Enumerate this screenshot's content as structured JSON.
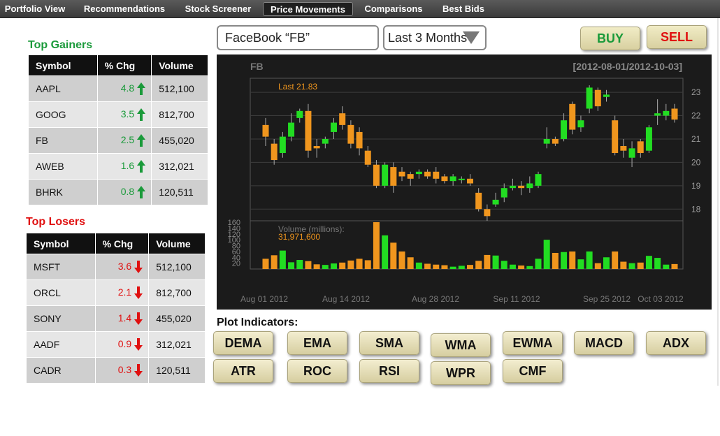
{
  "nav": {
    "tabs": [
      {
        "label": "Portfolio View"
      },
      {
        "label": "Recommendations"
      },
      {
        "label": "Stock Screener"
      },
      {
        "label": "Price Movements",
        "active": true
      },
      {
        "label": "Comparisons"
      },
      {
        "label": "Best Bids"
      }
    ]
  },
  "gainers": {
    "title": "Top Gainers",
    "color": "#1a9a3a",
    "headers": [
      "Symbol",
      "% Chg",
      "Volume"
    ],
    "rows": [
      {
        "symbol": "AAPL",
        "chg": "4.8",
        "volume": "512,100"
      },
      {
        "symbol": "GOOG",
        "chg": "3.5",
        "volume": "812,700"
      },
      {
        "symbol": "FB",
        "chg": "2.5",
        "volume": "455,020"
      },
      {
        "symbol": "AWEB",
        "chg": "1.6",
        "volume": "312,021"
      },
      {
        "symbol": "BHRK",
        "chg": "0.8",
        "volume": "120,511"
      }
    ]
  },
  "losers": {
    "title": "Top Losers",
    "color": "#e01010",
    "headers": [
      "Symbol",
      "% Chg",
      "Volume"
    ],
    "rows": [
      {
        "symbol": "MSFT",
        "chg": "3.6",
        "volume": "512,100"
      },
      {
        "symbol": "ORCL",
        "chg": "2.1",
        "volume": "812,700"
      },
      {
        "symbol": "SONY",
        "chg": "1.4",
        "volume": "455,020"
      },
      {
        "symbol": "AADF",
        "chg": "0.9",
        "volume": "312,021"
      },
      {
        "symbol": "CADR",
        "chg": "0.3",
        "volume": "120,511"
      }
    ]
  },
  "search": {
    "value": "FaceBook “FB”",
    "range": "Last 3 Months"
  },
  "trade": {
    "buy": "BUY",
    "sell": "SELL",
    "buy_color": "#1a9a3a",
    "sell_color": "#e01010"
  },
  "chart_data": {
    "type": "candlestick",
    "symbol": "FB",
    "date_range": "[2012-08-01/2012-10-03]",
    "last_label": "Last 21.83",
    "volume_label": "Volume (millions):",
    "volume_value": "31,971,600",
    "up_color": "#22dd22",
    "down_color": "#f0961e",
    "price_ticks": [
      18,
      19,
      20,
      21,
      22,
      23
    ],
    "volume_ticks": [
      20,
      40,
      60,
      80,
      100,
      120,
      140,
      160
    ],
    "x_ticks": [
      "Aug 01 2012",
      "Aug 14 2012",
      "Aug 28 2012",
      "Sep 11 2012",
      "Sep 25 2012",
      "Oct 03 2012"
    ],
    "ylim": [
      17.5,
      23.6
    ],
    "vol_lim": [
      0,
      160
    ],
    "candles": [
      {
        "o": 21.6,
        "c": 21.1,
        "h": 21.9,
        "l": 20.7,
        "v": 35
      },
      {
        "o": 20.8,
        "c": 20.1,
        "h": 21.0,
        "l": 19.9,
        "v": 47
      },
      {
        "o": 20.4,
        "c": 21.1,
        "h": 21.3,
        "l": 20.2,
        "v": 63
      },
      {
        "o": 21.1,
        "c": 21.7,
        "h": 22.1,
        "l": 20.9,
        "v": 23
      },
      {
        "o": 21.9,
        "c": 22.2,
        "h": 22.3,
        "l": 21.7,
        "v": 31
      },
      {
        "o": 22.2,
        "c": 20.5,
        "h": 22.5,
        "l": 20.2,
        "v": 27
      },
      {
        "o": 20.7,
        "c": 20.6,
        "h": 21.0,
        "l": 20.2,
        "v": 16
      },
      {
        "o": 20.8,
        "c": 21.0,
        "h": 21.1,
        "l": 20.6,
        "v": 14
      },
      {
        "o": 21.3,
        "c": 21.7,
        "h": 21.9,
        "l": 21.0,
        "v": 19
      },
      {
        "o": 22.1,
        "c": 21.6,
        "h": 22.4,
        "l": 21.4,
        "v": 22
      },
      {
        "o": 21.6,
        "c": 20.8,
        "h": 21.8,
        "l": 20.6,
        "v": 29
      },
      {
        "o": 21.3,
        "c": 20.6,
        "h": 21.5,
        "l": 20.3,
        "v": 35
      },
      {
        "o": 20.5,
        "c": 19.9,
        "h": 20.7,
        "l": 19.8,
        "v": 30
      },
      {
        "o": 19.9,
        "c": 19.0,
        "h": 20.1,
        "l": 18.9,
        "v": 160
      },
      {
        "o": 19.0,
        "c": 19.9,
        "h": 20.0,
        "l": 18.9,
        "v": 115
      },
      {
        "o": 19.8,
        "c": 19.0,
        "h": 20.0,
        "l": 18.7,
        "v": 90
      },
      {
        "o": 19.6,
        "c": 19.4,
        "h": 19.8,
        "l": 19.2,
        "v": 60
      },
      {
        "o": 19.5,
        "c": 19.3,
        "h": 19.6,
        "l": 19.0,
        "v": 40
      },
      {
        "o": 19.5,
        "c": 19.6,
        "h": 19.7,
        "l": 19.3,
        "v": 22
      },
      {
        "o": 19.6,
        "c": 19.4,
        "h": 19.7,
        "l": 19.3,
        "v": 18
      },
      {
        "o": 19.6,
        "c": 19.3,
        "h": 19.8,
        "l": 19.1,
        "v": 15
      },
      {
        "o": 19.4,
        "c": 19.2,
        "h": 19.5,
        "l": 19.1,
        "v": 13
      },
      {
        "o": 19.2,
        "c": 19.4,
        "h": 19.5,
        "l": 19.0,
        "v": 8
      },
      {
        "o": 19.3,
        "c": 19.3,
        "h": 19.4,
        "l": 19.1,
        "v": 11
      },
      {
        "o": 19.3,
        "c": 19.1,
        "h": 19.5,
        "l": 19.0,
        "v": 14
      },
      {
        "o": 18.7,
        "c": 18.0,
        "h": 18.9,
        "l": 17.9,
        "v": 28
      },
      {
        "o": 18.0,
        "c": 17.7,
        "h": 18.2,
        "l": 17.5,
        "v": 48
      },
      {
        "o": 18.2,
        "c": 18.4,
        "h": 18.7,
        "l": 18.1,
        "v": 46
      },
      {
        "o": 18.5,
        "c": 18.9,
        "h": 19.1,
        "l": 18.3,
        "v": 28
      },
      {
        "o": 18.9,
        "c": 19.0,
        "h": 19.3,
        "l": 18.8,
        "v": 15
      },
      {
        "o": 19.0,
        "c": 18.9,
        "h": 19.2,
        "l": 18.6,
        "v": 12
      },
      {
        "o": 18.9,
        "c": 19.1,
        "h": 19.4,
        "l": 18.7,
        "v": 10
      },
      {
        "o": 19.0,
        "c": 19.5,
        "h": 19.6,
        "l": 18.9,
        "v": 35
      },
      {
        "o": 20.8,
        "c": 21.0,
        "h": 21.5,
        "l": 20.6,
        "v": 100
      },
      {
        "o": 21.0,
        "c": 20.8,
        "h": 21.1,
        "l": 20.7,
        "v": 55
      },
      {
        "o": 21.0,
        "c": 21.8,
        "h": 22.1,
        "l": 20.9,
        "v": 58
      },
      {
        "o": 22.5,
        "c": 21.4,
        "h": 22.6,
        "l": 21.2,
        "v": 60
      },
      {
        "o": 21.5,
        "c": 21.8,
        "h": 22.0,
        "l": 21.3,
        "v": 33
      },
      {
        "o": 22.3,
        "c": 23.2,
        "h": 23.3,
        "l": 22.1,
        "v": 60
      },
      {
        "o": 23.1,
        "c": 22.4,
        "h": 23.2,
        "l": 22.2,
        "v": 20
      },
      {
        "o": 22.8,
        "c": 22.9,
        "h": 23.1,
        "l": 22.6,
        "v": 40
      },
      {
        "o": 21.8,
        "c": 20.4,
        "h": 22.0,
        "l": 20.3,
        "v": 60
      },
      {
        "o": 20.7,
        "c": 20.5,
        "h": 21.0,
        "l": 20.2,
        "v": 25
      },
      {
        "o": 20.2,
        "c": 20.6,
        "h": 20.9,
        "l": 19.8,
        "v": 20
      },
      {
        "o": 20.9,
        "c": 20.4,
        "h": 21.0,
        "l": 20.2,
        "v": 22
      },
      {
        "o": 20.5,
        "c": 21.5,
        "h": 21.6,
        "l": 20.4,
        "v": 45
      },
      {
        "o": 22.0,
        "c": 22.1,
        "h": 22.7,
        "l": 21.6,
        "v": 38
      },
      {
        "o": 22.0,
        "c": 22.2,
        "h": 22.5,
        "l": 21.8,
        "v": 15
      },
      {
        "o": 22.3,
        "c": 21.83,
        "h": 22.5,
        "l": 21.7,
        "v": 17
      }
    ]
  },
  "indicators": {
    "title": "Plot Indicators:",
    "buttons": [
      "DEMA",
      "EMA",
      "SMA",
      "WMA",
      "EWMA",
      "MACD",
      "ADX",
      "ATR",
      "ROC",
      "RSI",
      "WPR",
      "CMF"
    ]
  }
}
